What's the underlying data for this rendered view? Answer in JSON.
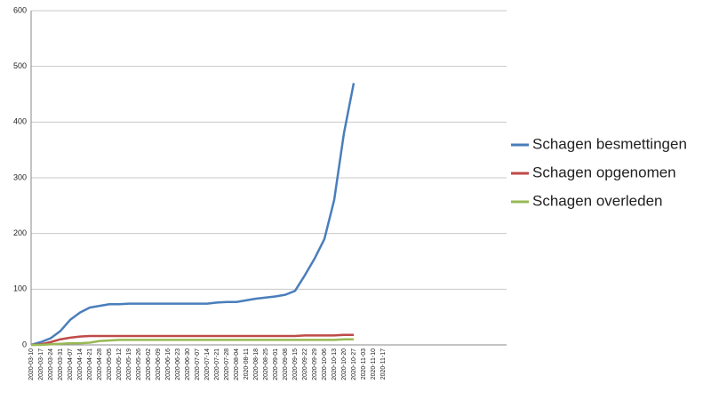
{
  "chart_data": {
    "type": "line",
    "categories": [
      "2020-03-10",
      "2020-03-17",
      "2020-03-24",
      "2020-03-31",
      "2020-04-07",
      "2020-04-14",
      "2020-04-21",
      "2020-04-28",
      "2020-05-05",
      "2020-05-12",
      "2020-05-19",
      "2020-05-26",
      "2020-06-02",
      "2020-06-09",
      "2020-06-16",
      "2020-06-23",
      "2020-06-30",
      "2020-07-07",
      "2020-07-14",
      "2020-07-21",
      "2020-07-28",
      "2020-08-04",
      "2020-08-11",
      "2020-08-18",
      "2020-08-25",
      "2020-09-01",
      "2020-09-08",
      "2020-09-15",
      "2020-09-22",
      "2020-09-29",
      "2020-10-06",
      "2020-10-13",
      "2020-10-20",
      "2020-10-27",
      "2020-11-03",
      "2020-11-10",
      "2020-11-17"
    ],
    "series": [
      {
        "name": "Schagen besmettingen",
        "color": "#4a7ebb",
        "values": [
          0,
          5,
          12,
          25,
          45,
          58,
          67,
          70,
          73,
          73,
          74,
          74,
          74,
          74,
          74,
          74,
          74,
          74,
          74,
          76,
          77,
          77,
          80,
          83,
          85,
          87,
          90,
          97,
          125,
          155,
          190,
          260,
          380,
          470,
          null,
          null,
          null
        ]
      },
      {
        "name": "Schagen opgenomen",
        "color": "#be4b48",
        "values": [
          0,
          1,
          5,
          10,
          13,
          15,
          16,
          16,
          16,
          16,
          16,
          16,
          16,
          16,
          16,
          16,
          16,
          16,
          16,
          16,
          16,
          16,
          16,
          16,
          16,
          16,
          16,
          16,
          17,
          17,
          17,
          17,
          18,
          18,
          null,
          null,
          null
        ]
      },
      {
        "name": "Schagen overleden",
        "color": "#98b954",
        "values": [
          0,
          0,
          1,
          2,
          3,
          3,
          4,
          7,
          8,
          9,
          9,
          9,
          9,
          9,
          9,
          9,
          9,
          9,
          9,
          9,
          9,
          9,
          9,
          9,
          9,
          9,
          9,
          9,
          9,
          9,
          9,
          9,
          10,
          10,
          null,
          null,
          null
        ]
      }
    ],
    "ylim": [
      0,
      600
    ],
    "yticks": [
      0,
      100,
      200,
      300,
      400,
      500,
      600
    ],
    "grid": true,
    "legend": "right"
  }
}
